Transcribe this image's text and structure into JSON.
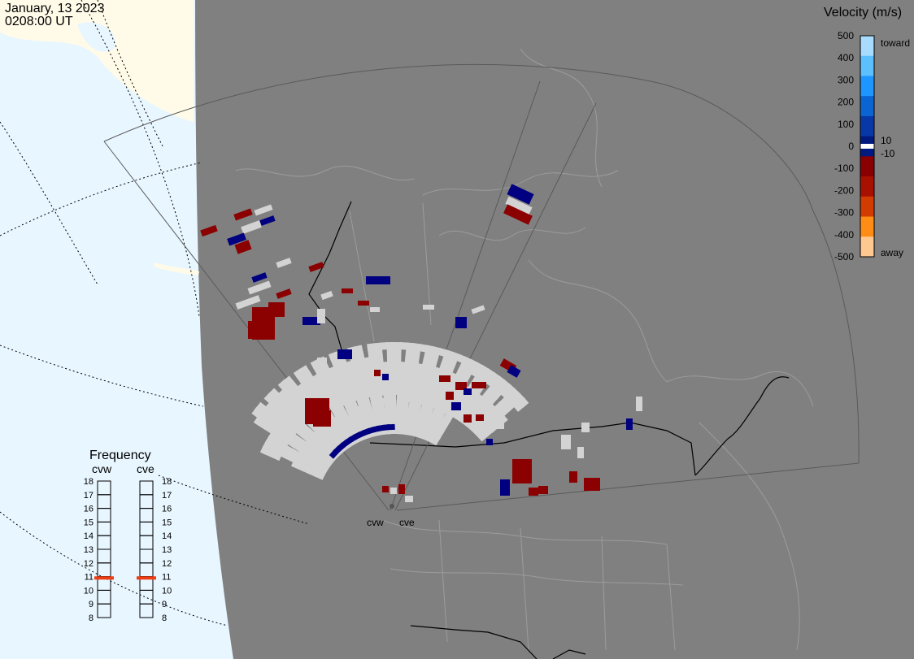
{
  "header": {
    "date": "January, 13 2023",
    "time": "0208:00 UT"
  },
  "legend": {
    "title": "Velocity (m/s)",
    "ticks": [
      "500",
      "400",
      "300",
      "200",
      "100",
      "0",
      "-100",
      "-200",
      "-300",
      "-400",
      "-500"
    ],
    "toward_label": "toward",
    "away_label": "away",
    "pos_threshold": "10",
    "neg_threshold": "-10",
    "colors": [
      "#a8dcff",
      "#5cc0ff",
      "#1e96ff",
      "#0a64d2",
      "#0838a8",
      "#001a80",
      "#8a0000",
      "#a81000",
      "#d23c00",
      "#ff8c14",
      "#ffc890"
    ]
  },
  "frequency": {
    "title": "Frequency",
    "columns": [
      "cvw",
      "cve"
    ],
    "ticks": [
      "18",
      "17",
      "16",
      "15",
      "14",
      "13",
      "12",
      "11",
      "10",
      "9",
      "8"
    ],
    "cvw_mhz": 10.9,
    "cve_mhz": 10.9
  },
  "radars": {
    "west_label": "cvw",
    "east_label": "cve"
  },
  "colors": {
    "land_bg": "#808080",
    "ocean": "#e8f6ff",
    "ice": "#fffbe8",
    "echo_gray": "#d3d3d3",
    "toward_dark": "#000080",
    "away_dark": "#8b0000",
    "marker": "#ee3c14"
  }
}
